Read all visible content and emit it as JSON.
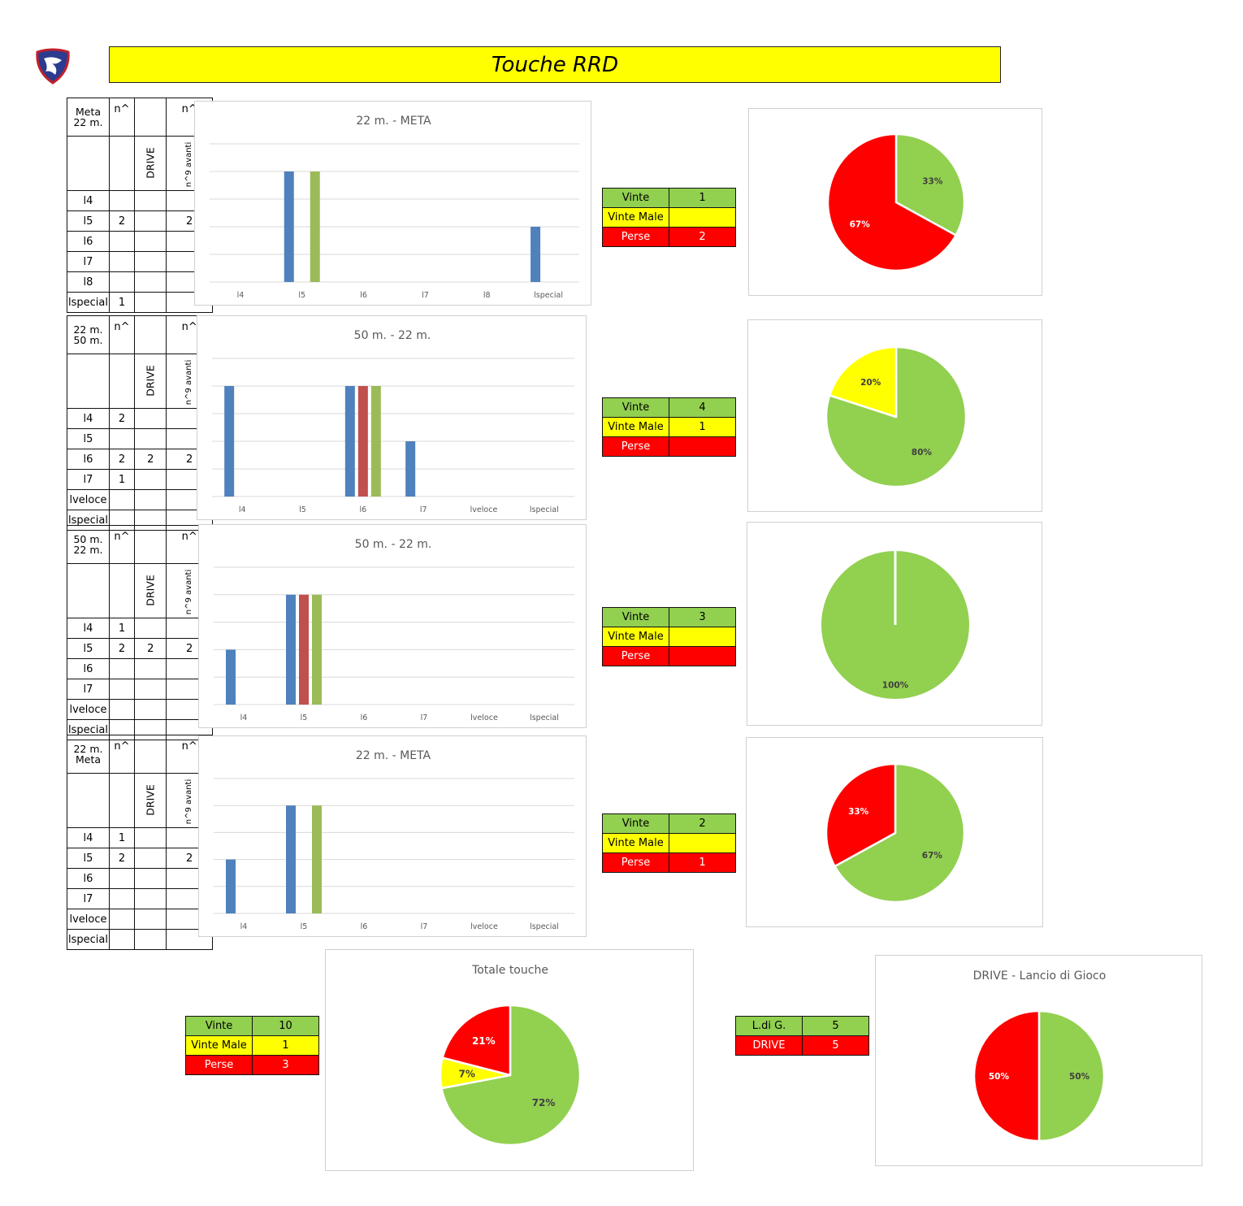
{
  "header": {
    "title": "Touche RRD"
  },
  "colors": {
    "blue": "#4f81bd",
    "red": "#c0504d",
    "green": "#9bbb59",
    "pie_green": "#92d050",
    "pie_yellow": "#ffff00",
    "pie_red": "#ff0000"
  },
  "sections": [
    {
      "table": {
        "label_line1": "Meta",
        "label_line2": "22 m.",
        "col1": "n^",
        "col2": "",
        "col3": "n^",
        "sub1": "",
        "sub2": "DRIVE",
        "sub3": "n^9 avanti",
        "rows": [
          {
            "label": "l4",
            "v1": "",
            "v2": "",
            "v3": ""
          },
          {
            "label": "l5",
            "v1": "2",
            "v2": "",
            "v3": "2"
          },
          {
            "label": "l6",
            "v1": "",
            "v2": "",
            "v3": ""
          },
          {
            "label": "l7",
            "v1": "",
            "v2": "",
            "v3": ""
          },
          {
            "label": "l8",
            "v1": "",
            "v2": "",
            "v3": ""
          },
          {
            "label": "lspecial",
            "v1": "1",
            "v2": "",
            "v3": ""
          }
        ]
      },
      "stats": {
        "won_label": "Vinte",
        "won": "1",
        "badly_label": "Vinte Male",
        "badly": "",
        "lost_label": "Perse",
        "lost": "2"
      },
      "pie_data": {
        "type": "pie",
        "slices": [
          {
            "label": "33%",
            "value": 33,
            "color": "#92d050"
          },
          {
            "label": "67%",
            "value": 67,
            "color": "#ff0000"
          }
        ]
      }
    },
    {
      "table": {
        "label_line1": "22 m.",
        "label_line2": "50 m.",
        "col1": "n^",
        "col2": "",
        "col3": "n^",
        "sub1": "",
        "sub2": "DRIVE",
        "sub3": "n^9 avanti",
        "rows": [
          {
            "label": "l4",
            "v1": "2",
            "v2": "",
            "v3": ""
          },
          {
            "label": "l5",
            "v1": "",
            "v2": "",
            "v3": ""
          },
          {
            "label": "l6",
            "v1": "2",
            "v2": "2",
            "v3": "2"
          },
          {
            "label": "l7",
            "v1": "1",
            "v2": "",
            "v3": ""
          },
          {
            "label": "lveloce",
            "v1": "",
            "v2": "",
            "v3": ""
          },
          {
            "label": "lspecial",
            "v1": "",
            "v2": "",
            "v3": ""
          }
        ]
      },
      "stats": {
        "won_label": "Vinte",
        "won": "4",
        "badly_label": "Vinte Male",
        "badly": "1",
        "lost_label": "Perse",
        "lost": ""
      },
      "pie_data": {
        "type": "pie",
        "slices": [
          {
            "label": "80%",
            "value": 80,
            "color": "#92d050"
          },
          {
            "label": "20%",
            "value": 20,
            "color": "#ffff00"
          }
        ]
      }
    },
    {
      "table": {
        "label_line1": "50 m.",
        "label_line2": "22 m.",
        "col1": "n^",
        "col2": "",
        "col3": "n^",
        "sub1": "",
        "sub2": "DRIVE",
        "sub3": "n^9 avanti",
        "rows": [
          {
            "label": "l4",
            "v1": "1",
            "v2": "",
            "v3": ""
          },
          {
            "label": "l5",
            "v1": "2",
            "v2": "2",
            "v3": "2"
          },
          {
            "label": "l6",
            "v1": "",
            "v2": "",
            "v3": ""
          },
          {
            "label": "l7",
            "v1": "",
            "v2": "",
            "v3": ""
          },
          {
            "label": "lveloce",
            "v1": "",
            "v2": "",
            "v3": ""
          },
          {
            "label": "lspecial",
            "v1": "",
            "v2": "",
            "v3": ""
          }
        ]
      },
      "stats": {
        "won_label": "Vinte",
        "won": "3",
        "badly_label": "Vinte Male",
        "badly": "",
        "lost_label": "Perse",
        "lost": ""
      },
      "pie_data": {
        "type": "pie",
        "slices": [
          {
            "label": "100%",
            "value": 100,
            "color": "#92d050"
          }
        ]
      }
    },
    {
      "table": {
        "label_line1": "22 m.",
        "label_line2": "Meta",
        "col1": "n^",
        "col2": "",
        "col3": "n^",
        "sub1": "",
        "sub2": "DRIVE",
        "sub3": "n^9 avanti",
        "rows": [
          {
            "label": "l4",
            "v1": "1",
            "v2": "",
            "v3": ""
          },
          {
            "label": "l5",
            "v1": "2",
            "v2": "",
            "v3": "2"
          },
          {
            "label": "l6",
            "v1": "",
            "v2": "",
            "v3": ""
          },
          {
            "label": "l7",
            "v1": "",
            "v2": "",
            "v3": ""
          },
          {
            "label": "lveloce",
            "v1": "",
            "v2": "",
            "v3": ""
          },
          {
            "label": "lspecial",
            "v1": "",
            "v2": "",
            "v3": ""
          }
        ]
      },
      "stats": {
        "won_label": "Vinte",
        "won": "2",
        "badly_label": "Vinte Male",
        "badly": "",
        "lost_label": "Perse",
        "lost": "1"
      },
      "pie_data": {
        "type": "pie",
        "slices": [
          {
            "label": "67%",
            "value": 67,
            "color": "#92d050"
          },
          {
            "label": "33%",
            "value": 33,
            "color": "#ff0000"
          }
        ]
      }
    }
  ],
  "chart_data": [
    {
      "type": "bar",
      "title": "22 m. - META",
      "categories": [
        "l4",
        "l5",
        "l6",
        "l7",
        "l8",
        "lspecial"
      ],
      "ylim": [
        0,
        2.5
      ],
      "grid": true,
      "series": [
        {
          "values": [
            0,
            2,
            0,
            0,
            0,
            1
          ],
          "color": "#4f81bd"
        },
        {
          "values": [
            0,
            0,
            0,
            0,
            0,
            0
          ],
          "color": "#c0504d"
        },
        {
          "values": [
            0,
            2,
            0,
            0,
            0,
            0
          ],
          "color": "#9bbb59"
        }
      ]
    },
    {
      "type": "bar",
      "title": "50 m. - 22 m.",
      "categories": [
        "l4",
        "l5",
        "l6",
        "l7",
        "lveloce",
        "lspecial"
      ],
      "ylim": [
        0,
        2.5
      ],
      "grid": true,
      "series": [
        {
          "values": [
            2,
            0,
            2,
            1,
            0,
            0
          ],
          "color": "#4f81bd"
        },
        {
          "values": [
            0,
            0,
            2,
            0,
            0,
            0
          ],
          "color": "#c0504d"
        },
        {
          "values": [
            0,
            0,
            2,
            0,
            0,
            0
          ],
          "color": "#9bbb59"
        }
      ]
    },
    {
      "type": "bar",
      "title": "50 m. - 22 m.",
      "categories": [
        "l4",
        "l5",
        "l6",
        "l7",
        "lveloce",
        "lspecial"
      ],
      "ylim": [
        0,
        2.5
      ],
      "grid": true,
      "series": [
        {
          "values": [
            1,
            2,
            0,
            0,
            0,
            0
          ],
          "color": "#4f81bd"
        },
        {
          "values": [
            0,
            2,
            0,
            0,
            0,
            0
          ],
          "color": "#c0504d"
        },
        {
          "values": [
            0,
            2,
            0,
            0,
            0,
            0
          ],
          "color": "#9bbb59"
        }
      ]
    },
    {
      "type": "bar",
      "title": "22 m. - META",
      "categories": [
        "l4",
        "l5",
        "l6",
        "l7",
        "lveloce",
        "lspecial"
      ],
      "ylim": [
        0,
        2.5
      ],
      "grid": true,
      "series": [
        {
          "values": [
            1,
            2,
            0,
            0,
            0,
            0
          ],
          "color": "#4f81bd"
        },
        {
          "values": [
            0,
            0,
            0,
            0,
            0,
            0
          ],
          "color": "#c0504d"
        },
        {
          "values": [
            0,
            2,
            0,
            0,
            0,
            0
          ],
          "color": "#9bbb59"
        }
      ]
    },
    {
      "type": "pie",
      "title": "Totale  touche",
      "slices": [
        {
          "label": "72%",
          "value": 72,
          "color": "#92d050"
        },
        {
          "label": "7%",
          "value": 7,
          "color": "#ffff00"
        },
        {
          "label": "21%",
          "value": 21,
          "color": "#ff0000"
        }
      ]
    },
    {
      "type": "pie",
      "title": "DRIVE - Lancio di Gioco",
      "slices": [
        {
          "label": "50%",
          "value": 50,
          "color": "#92d050"
        },
        {
          "label": "50%",
          "value": 50,
          "color": "#ff0000"
        }
      ]
    }
  ],
  "totals": {
    "won_label": "Vinte",
    "won": "10",
    "badly_label": "Vinte Male",
    "badly": "1",
    "lost_label": "Perse",
    "lost": "3"
  },
  "drive_totals": {
    "ldg_label": "L.di G.",
    "ldg": "5",
    "drive_label": "DRIVE",
    "drive": "5"
  }
}
